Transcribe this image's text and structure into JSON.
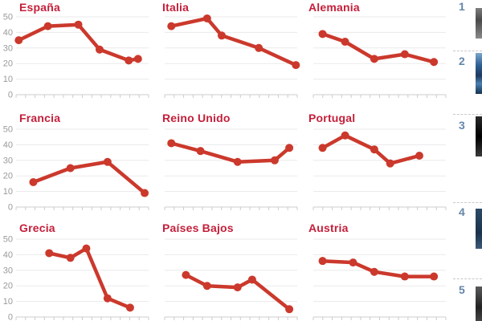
{
  "palette": {
    "line_color": "#cb392c",
    "marker_color": "#cb392c",
    "title_color": "#c41f3a",
    "grid_color": "#eaeaea",
    "axis_color": "#cccccc",
    "axis_label_color": "#9a9a9a",
    "rank_number_color": "#6486a9"
  },
  "chart_data": {
    "type": "line",
    "layout": "3x3-small-multiples",
    "grid": "horizontal-only",
    "ylim": [
      0,
      50
    ],
    "y_ticks": [
      0,
      10,
      20,
      30,
      40,
      50
    ],
    "y_labels_visible_on": "first-column-only",
    "x_axis": {
      "tick_count": 15,
      "labels_visible": false
    },
    "series": [
      {
        "name": "España",
        "x_frac": [
          0.02,
          0.24,
          0.47,
          0.63,
          0.85,
          0.92
        ],
        "values": [
          35,
          44,
          45,
          29,
          22,
          23
        ]
      },
      {
        "name": "Italia",
        "x_frac": [
          0.05,
          0.32,
          0.43,
          0.71,
          0.99
        ],
        "values": [
          44,
          49,
          38,
          30,
          19
        ]
      },
      {
        "name": "Alemania",
        "x_frac": [
          0.07,
          0.24,
          0.46,
          0.69,
          0.91
        ],
        "values": [
          39,
          34,
          23,
          26,
          21
        ]
      },
      {
        "name": "Francia",
        "x_frac": [
          0.13,
          0.41,
          0.69,
          0.97
        ],
        "values": [
          16,
          25,
          29,
          9
        ]
      },
      {
        "name": "Reino Unido",
        "x_frac": [
          0.05,
          0.27,
          0.55,
          0.83,
          0.94
        ],
        "values": [
          41,
          36,
          29,
          30,
          38
        ]
      },
      {
        "name": "Portugal",
        "x_frac": [
          0.07,
          0.24,
          0.46,
          0.58,
          0.8
        ],
        "values": [
          38,
          46,
          37,
          28,
          33
        ]
      },
      {
        "name": "Grecia",
        "x_frac": [
          0.25,
          0.41,
          0.53,
          0.69,
          0.86
        ],
        "values": [
          41,
          38,
          44,
          12,
          6
        ]
      },
      {
        "name": "Países Bajos",
        "x_frac": [
          0.16,
          0.32,
          0.55,
          0.66,
          0.94
        ],
        "values": [
          27,
          20,
          19,
          24,
          5
        ]
      },
      {
        "name": "Austria",
        "x_frac": [
          0.07,
          0.3,
          0.46,
          0.69,
          0.91
        ],
        "values": [
          36,
          35,
          29,
          26,
          26
        ]
      }
    ]
  },
  "sidebar": {
    "items": [
      {
        "rank": "1"
      },
      {
        "rank": "2"
      },
      {
        "rank": "3"
      },
      {
        "rank": "4"
      },
      {
        "rank": "5"
      }
    ]
  }
}
